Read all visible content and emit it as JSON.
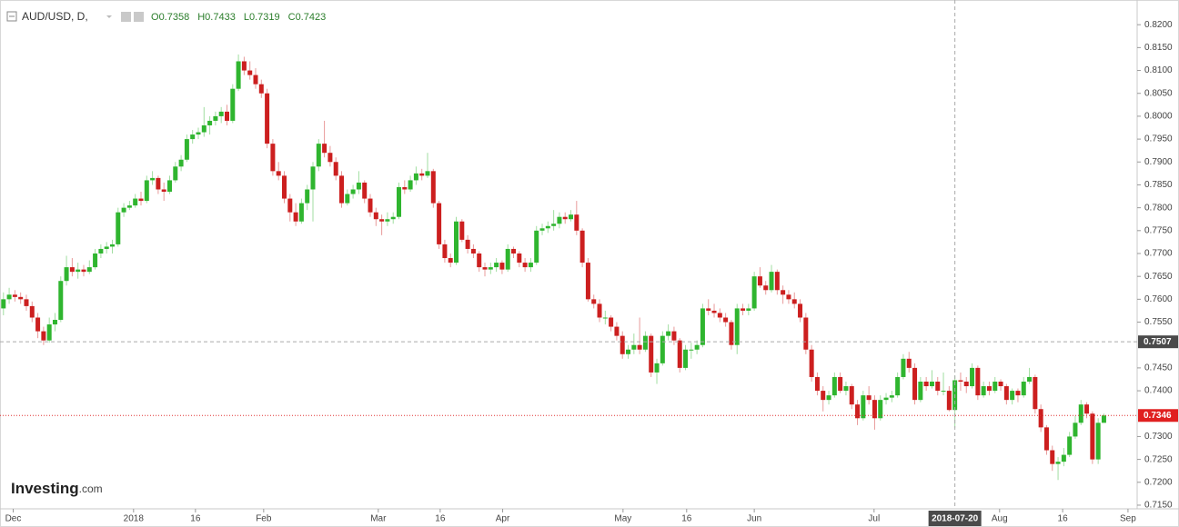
{
  "chart_data": {
    "type": "candlestick",
    "symbol": "AUD/USD, D,",
    "legend_fields": [
      "O",
      "H",
      "L",
      "C"
    ],
    "watermark": {
      "brand": "Investing",
      "suffix": ".com"
    },
    "up_color": "#2fb52f",
    "down_color": "#cc1f1f",
    "ylim": [
      0.7142,
      0.8254
    ],
    "xlim": [
      -0.6,
      197.8
    ],
    "yticks": [
      {
        "value": 0.82,
        "label": "0.8200"
      },
      {
        "value": 0.815,
        "label": "0.8150"
      },
      {
        "value": 0.81,
        "label": "0.8100"
      },
      {
        "value": 0.805,
        "label": "0.8050"
      },
      {
        "value": 0.8,
        "label": "0.8000"
      },
      {
        "value": 0.795,
        "label": "0.7950"
      },
      {
        "value": 0.79,
        "label": "0.7900"
      },
      {
        "value": 0.785,
        "label": "0.7850"
      },
      {
        "value": 0.78,
        "label": "0.7800"
      },
      {
        "value": 0.775,
        "label": "0.7750"
      },
      {
        "value": 0.77,
        "label": "0.7700"
      },
      {
        "value": 0.765,
        "label": "0.7650"
      },
      {
        "value": 0.76,
        "label": "0.7600"
      },
      {
        "value": 0.755,
        "label": "0.7550"
      },
      {
        "value": 0.745,
        "label": "0.7450"
      },
      {
        "value": 0.74,
        "label": "0.7400"
      },
      {
        "value": 0.73,
        "label": "0.7300"
      },
      {
        "value": 0.725,
        "label": "0.7250"
      },
      {
        "value": 0.72,
        "label": "0.7200"
      },
      {
        "value": 0.715,
        "label": "0.7150"
      }
    ],
    "xticks": [
      {
        "value": 1.7,
        "label": "Dec"
      },
      {
        "value": 22.7,
        "label": "2018"
      },
      {
        "value": 33.5,
        "label": "16"
      },
      {
        "value": 45.4,
        "label": "Feb"
      },
      {
        "value": 65.4,
        "label": "Mar"
      },
      {
        "value": 76.2,
        "label": "16"
      },
      {
        "value": 87.1,
        "label": "Apr"
      },
      {
        "value": 108.1,
        "label": "May"
      },
      {
        "value": 119.2,
        "label": "16"
      },
      {
        "value": 131,
        "label": "Jun"
      },
      {
        "value": 151.9,
        "label": "Jul"
      },
      {
        "value": 173.8,
        "label": "Aug"
      },
      {
        "value": 184.8,
        "label": "16"
      },
      {
        "value": 196.2,
        "label": "Sep"
      }
    ],
    "crosshair": {
      "x": {
        "value": 166,
        "label": "2018-07-20"
      },
      "y": 0.7507
    },
    "candles": [
      [
        0.758,
        0.7615,
        0.7565,
        0.76
      ],
      [
        0.76,
        0.7625,
        0.759,
        0.761
      ],
      [
        0.761,
        0.762,
        0.7595,
        0.7605
      ],
      [
        0.7605,
        0.7615,
        0.759,
        0.76
      ],
      [
        0.76,
        0.761,
        0.7575,
        0.7585
      ],
      [
        0.7585,
        0.7595,
        0.755,
        0.756
      ],
      [
        0.756,
        0.757,
        0.7515,
        0.753
      ],
      [
        0.753,
        0.754,
        0.75,
        0.751
      ],
      [
        0.751,
        0.756,
        0.7505,
        0.7545
      ],
      [
        0.7545,
        0.757,
        0.753,
        0.7555
      ],
      [
        0.7555,
        0.765,
        0.755,
        0.764
      ],
      [
        0.764,
        0.7695,
        0.763,
        0.767
      ],
      [
        0.767,
        0.769,
        0.765,
        0.766
      ],
      [
        0.766,
        0.768,
        0.7645,
        0.7665
      ],
      [
        0.7665,
        0.7675,
        0.765,
        0.766
      ],
      [
        0.766,
        0.7685,
        0.7655,
        0.767
      ],
      [
        0.767,
        0.771,
        0.7665,
        0.77
      ],
      [
        0.77,
        0.772,
        0.769,
        0.771
      ],
      [
        0.771,
        0.7725,
        0.77,
        0.7715
      ],
      [
        0.7715,
        0.773,
        0.77,
        0.772
      ],
      [
        0.772,
        0.78,
        0.7715,
        0.779
      ],
      [
        0.779,
        0.781,
        0.778,
        0.78
      ],
      [
        0.78,
        0.7815,
        0.7795,
        0.7805
      ],
      [
        0.7805,
        0.783,
        0.78,
        0.782
      ],
      [
        0.782,
        0.7835,
        0.7805,
        0.7815
      ],
      [
        0.7815,
        0.787,
        0.781,
        0.786
      ],
      [
        0.786,
        0.788,
        0.785,
        0.7865
      ],
      [
        0.7865,
        0.787,
        0.783,
        0.784
      ],
      [
        0.784,
        0.7855,
        0.7815,
        0.7835
      ],
      [
        0.7835,
        0.787,
        0.783,
        0.786
      ],
      [
        0.786,
        0.79,
        0.7855,
        0.789
      ],
      [
        0.789,
        0.7915,
        0.788,
        0.7905
      ],
      [
        0.7905,
        0.796,
        0.79,
        0.795
      ],
      [
        0.795,
        0.797,
        0.794,
        0.796
      ],
      [
        0.796,
        0.7975,
        0.795,
        0.7965
      ],
      [
        0.7965,
        0.802,
        0.7955,
        0.798
      ],
      [
        0.798,
        0.8,
        0.796,
        0.799
      ],
      [
        0.799,
        0.801,
        0.798,
        0.8
      ],
      [
        0.8,
        0.802,
        0.7985,
        0.801
      ],
      [
        0.801,
        0.8025,
        0.798,
        0.799
      ],
      [
        0.799,
        0.807,
        0.7985,
        0.806
      ],
      [
        0.806,
        0.8135,
        0.8055,
        0.812
      ],
      [
        0.812,
        0.813,
        0.809,
        0.81
      ],
      [
        0.81,
        0.812,
        0.808,
        0.809
      ],
      [
        0.809,
        0.8105,
        0.806,
        0.807
      ],
      [
        0.807,
        0.808,
        0.804,
        0.805
      ],
      [
        0.805,
        0.806,
        0.793,
        0.794
      ],
      [
        0.794,
        0.795,
        0.787,
        0.788
      ],
      [
        0.788,
        0.79,
        0.786,
        0.787
      ],
      [
        0.787,
        0.788,
        0.781,
        0.782
      ],
      [
        0.782,
        0.783,
        0.777,
        0.779
      ],
      [
        0.779,
        0.781,
        0.776,
        0.777
      ],
      [
        0.777,
        0.782,
        0.7765,
        0.781
      ],
      [
        0.781,
        0.785,
        0.7795,
        0.784
      ],
      [
        0.784,
        0.79,
        0.777,
        0.789
      ],
      [
        0.789,
        0.795,
        0.788,
        0.794
      ],
      [
        0.794,
        0.799,
        0.791,
        0.792
      ],
      [
        0.792,
        0.7935,
        0.789,
        0.79
      ],
      [
        0.79,
        0.791,
        0.786,
        0.787
      ],
      [
        0.787,
        0.788,
        0.78,
        0.781
      ],
      [
        0.781,
        0.784,
        0.7805,
        0.783
      ],
      [
        0.783,
        0.785,
        0.782,
        0.784
      ],
      [
        0.784,
        0.788,
        0.783,
        0.7855
      ],
      [
        0.7855,
        0.786,
        0.781,
        0.782
      ],
      [
        0.782,
        0.783,
        0.778,
        0.779
      ],
      [
        0.779,
        0.78,
        0.776,
        0.7775
      ],
      [
        0.7775,
        0.7785,
        0.774,
        0.777
      ],
      [
        0.777,
        0.779,
        0.776,
        0.7775
      ],
      [
        0.7775,
        0.779,
        0.7765,
        0.778
      ],
      [
        0.778,
        0.7855,
        0.7775,
        0.7845
      ],
      [
        0.7845,
        0.786,
        0.783,
        0.784
      ],
      [
        0.784,
        0.787,
        0.7835,
        0.786
      ],
      [
        0.786,
        0.789,
        0.785,
        0.7875
      ],
      [
        0.7875,
        0.7885,
        0.786,
        0.787
      ],
      [
        0.787,
        0.792,
        0.7865,
        0.788
      ],
      [
        0.788,
        0.7885,
        0.78,
        0.781
      ],
      [
        0.781,
        0.7815,
        0.771,
        0.772
      ],
      [
        0.772,
        0.773,
        0.768,
        0.769
      ],
      [
        0.769,
        0.77,
        0.767,
        0.768
      ],
      [
        0.768,
        0.778,
        0.7675,
        0.777
      ],
      [
        0.777,
        0.7775,
        0.7725,
        0.773
      ],
      [
        0.773,
        0.774,
        0.77,
        0.771
      ],
      [
        0.771,
        0.772,
        0.769,
        0.77
      ],
      [
        0.77,
        0.7705,
        0.766,
        0.767
      ],
      [
        0.767,
        0.768,
        0.765,
        0.7665
      ],
      [
        0.7665,
        0.768,
        0.7655,
        0.767
      ],
      [
        0.767,
        0.769,
        0.766,
        0.768
      ],
      [
        0.768,
        0.7685,
        0.7655,
        0.7665
      ],
      [
        0.7665,
        0.772,
        0.766,
        0.771
      ],
      [
        0.771,
        0.7715,
        0.769,
        0.77
      ],
      [
        0.77,
        0.7705,
        0.767,
        0.768
      ],
      [
        0.768,
        0.769,
        0.766,
        0.767
      ],
      [
        0.767,
        0.769,
        0.766,
        0.768
      ],
      [
        0.768,
        0.776,
        0.7675,
        0.775
      ],
      [
        0.775,
        0.7765,
        0.774,
        0.7755
      ],
      [
        0.7755,
        0.777,
        0.7745,
        0.776
      ],
      [
        0.776,
        0.7795,
        0.775,
        0.7765
      ],
      [
        0.7765,
        0.779,
        0.7755,
        0.778
      ],
      [
        0.778,
        0.779,
        0.7765,
        0.7775
      ],
      [
        0.7775,
        0.7795,
        0.777,
        0.7785
      ],
      [
        0.7785,
        0.7815,
        0.774,
        0.775
      ],
      [
        0.775,
        0.7755,
        0.767,
        0.768
      ],
      [
        0.768,
        0.769,
        0.7595,
        0.76
      ],
      [
        0.76,
        0.761,
        0.758,
        0.759
      ],
      [
        0.759,
        0.76,
        0.755,
        0.756
      ],
      [
        0.756,
        0.7575,
        0.7545,
        0.756
      ],
      [
        0.756,
        0.7565,
        0.753,
        0.754
      ],
      [
        0.754,
        0.755,
        0.751,
        0.752
      ],
      [
        0.752,
        0.753,
        0.747,
        0.748
      ],
      [
        0.748,
        0.75,
        0.747,
        0.749
      ],
      [
        0.749,
        0.7525,
        0.748,
        0.75
      ],
      [
        0.75,
        0.756,
        0.748,
        0.749
      ],
      [
        0.749,
        0.753,
        0.7485,
        0.752
      ],
      [
        0.752,
        0.7525,
        0.743,
        0.744
      ],
      [
        0.744,
        0.747,
        0.7415,
        0.746
      ],
      [
        0.746,
        0.753,
        0.7455,
        0.752
      ],
      [
        0.752,
        0.7545,
        0.751,
        0.753
      ],
      [
        0.753,
        0.754,
        0.75,
        0.751
      ],
      [
        0.751,
        0.7515,
        0.744,
        0.745
      ],
      [
        0.745,
        0.75,
        0.7445,
        0.749
      ],
      [
        0.749,
        0.7505,
        0.747,
        0.749
      ],
      [
        0.749,
        0.751,
        0.748,
        0.75
      ],
      [
        0.75,
        0.759,
        0.7495,
        0.758
      ],
      [
        0.758,
        0.76,
        0.7565,
        0.7575
      ],
      [
        0.7575,
        0.759,
        0.756,
        0.757
      ],
      [
        0.757,
        0.758,
        0.755,
        0.756
      ],
      [
        0.756,
        0.757,
        0.754,
        0.755
      ],
      [
        0.755,
        0.7555,
        0.749,
        0.75
      ],
      [
        0.75,
        0.759,
        0.748,
        0.758
      ],
      [
        0.758,
        0.759,
        0.7565,
        0.7575
      ],
      [
        0.7575,
        0.759,
        0.7565,
        0.758
      ],
      [
        0.758,
        0.766,
        0.7575,
        0.765
      ],
      [
        0.765,
        0.767,
        0.7625,
        0.763
      ],
      [
        0.763,
        0.764,
        0.761,
        0.762
      ],
      [
        0.762,
        0.7675,
        0.7615,
        0.766
      ],
      [
        0.766,
        0.7665,
        0.761,
        0.762
      ],
      [
        0.762,
        0.763,
        0.759,
        0.761
      ],
      [
        0.761,
        0.762,
        0.759,
        0.76
      ],
      [
        0.76,
        0.7615,
        0.758,
        0.759
      ],
      [
        0.759,
        0.76,
        0.755,
        0.756
      ],
      [
        0.756,
        0.757,
        0.748,
        0.749
      ],
      [
        0.749,
        0.75,
        0.742,
        0.743
      ],
      [
        0.743,
        0.744,
        0.739,
        0.74
      ],
      [
        0.74,
        0.741,
        0.7355,
        0.738
      ],
      [
        0.738,
        0.74,
        0.737,
        0.739
      ],
      [
        0.739,
        0.744,
        0.7385,
        0.743
      ],
      [
        0.743,
        0.744,
        0.7395,
        0.74
      ],
      [
        0.74,
        0.742,
        0.739,
        0.741
      ],
      [
        0.741,
        0.7415,
        0.736,
        0.737
      ],
      [
        0.737,
        0.738,
        0.7325,
        0.734
      ],
      [
        0.734,
        0.74,
        0.7335,
        0.739
      ],
      [
        0.739,
        0.741,
        0.737,
        0.738
      ],
      [
        0.738,
        0.739,
        0.7315,
        0.734
      ],
      [
        0.734,
        0.739,
        0.7335,
        0.738
      ],
      [
        0.738,
        0.7395,
        0.737,
        0.7385
      ],
      [
        0.7385,
        0.74,
        0.7375,
        0.739
      ],
      [
        0.739,
        0.744,
        0.7385,
        0.743
      ],
      [
        0.743,
        0.748,
        0.7425,
        0.747
      ],
      [
        0.747,
        0.7485,
        0.744,
        0.745
      ],
      [
        0.745,
        0.746,
        0.737,
        0.738
      ],
      [
        0.738,
        0.743,
        0.7375,
        0.742
      ],
      [
        0.742,
        0.743,
        0.74,
        0.741
      ],
      [
        0.741,
        0.7445,
        0.7405,
        0.742
      ],
      [
        0.742,
        0.743,
        0.739,
        0.74
      ],
      [
        0.74,
        0.744,
        0.739,
        0.74
      ],
      [
        0.74,
        0.741,
        0.7355,
        0.7358
      ],
      [
        0.7358,
        0.7433,
        0.7319,
        0.7423
      ],
      [
        0.7423,
        0.744,
        0.74,
        0.742
      ],
      [
        0.742,
        0.743,
        0.7395,
        0.741
      ],
      [
        0.741,
        0.746,
        0.7405,
        0.745
      ],
      [
        0.745,
        0.7455,
        0.738,
        0.739
      ],
      [
        0.739,
        0.742,
        0.7385,
        0.741
      ],
      [
        0.741,
        0.742,
        0.739,
        0.74
      ],
      [
        0.74,
        0.743,
        0.7395,
        0.742
      ],
      [
        0.742,
        0.7425,
        0.74,
        0.741
      ],
      [
        0.741,
        0.7415,
        0.737,
        0.738
      ],
      [
        0.738,
        0.7405,
        0.737,
        0.74
      ],
      [
        0.74,
        0.7405,
        0.7375,
        0.739
      ],
      [
        0.739,
        0.743,
        0.7385,
        0.742
      ],
      [
        0.742,
        0.745,
        0.7415,
        0.743
      ],
      [
        0.743,
        0.7435,
        0.735,
        0.736
      ],
      [
        0.736,
        0.737,
        0.731,
        0.732
      ],
      [
        0.732,
        0.7325,
        0.726,
        0.727
      ],
      [
        0.727,
        0.728,
        0.7225,
        0.724
      ],
      [
        0.724,
        0.7255,
        0.7205,
        0.7245
      ],
      [
        0.7245,
        0.7275,
        0.7235,
        0.726
      ],
      [
        0.726,
        0.731,
        0.7255,
        0.73
      ],
      [
        0.73,
        0.7345,
        0.7295,
        0.733
      ],
      [
        0.733,
        0.738,
        0.7325,
        0.737
      ],
      [
        0.737,
        0.7375,
        0.734,
        0.735
      ],
      [
        0.735,
        0.7355,
        0.724,
        0.725
      ],
      [
        0.725,
        0.734,
        0.724,
        0.733
      ],
      [
        0.733,
        0.735,
        0.733,
        0.7346
      ]
    ]
  }
}
